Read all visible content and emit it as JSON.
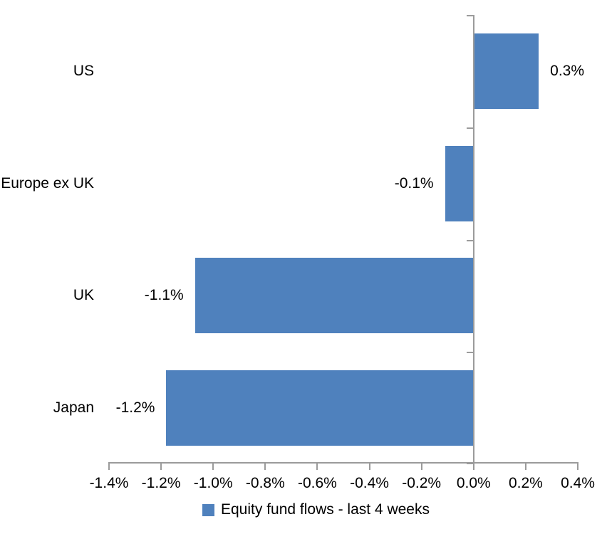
{
  "chart_data": {
    "type": "bar",
    "orientation": "horizontal",
    "title": "",
    "xlabel": "",
    "ylabel": "",
    "categories": [
      "US",
      "Europe ex UK",
      "UK",
      "Japan"
    ],
    "values": [
      0.3,
      -0.1,
      -1.1,
      -1.2
    ],
    "value_labels": [
      "0.3%",
      "-0.1%",
      "-1.1%",
      "-1.2%"
    ],
    "plot_values": [
      0.25,
      -0.11,
      -1.07,
      -1.18
    ],
    "series": [
      {
        "name": "Equity fund flows - last 4 weeks",
        "values": [
          0.3,
          -0.1,
          -1.1,
          -1.2
        ]
      }
    ],
    "xlim": [
      -1.4,
      0.4
    ],
    "x_tick_values": [
      -1.4,
      -1.2,
      -1.0,
      -0.8,
      -0.6,
      -0.4,
      -0.2,
      0.0,
      0.2,
      0.4
    ],
    "x_ticks": [
      "-1.4%",
      "-1.2%",
      "-1.0%",
      "-0.8%",
      "-0.6%",
      "-0.4%",
      "-0.2%",
      "0.0%",
      "0.2%",
      "0.4%"
    ],
    "grid": false,
    "legend_position": "bottom",
    "bar_color": "#4F81BD",
    "axis_color": "#9B9B9B",
    "text_color": "#000000",
    "background_color": "#FFFFFF"
  },
  "legend": {
    "label": "Equity fund flows - last 4 weeks",
    "swatch_color": "#4F81BD"
  }
}
